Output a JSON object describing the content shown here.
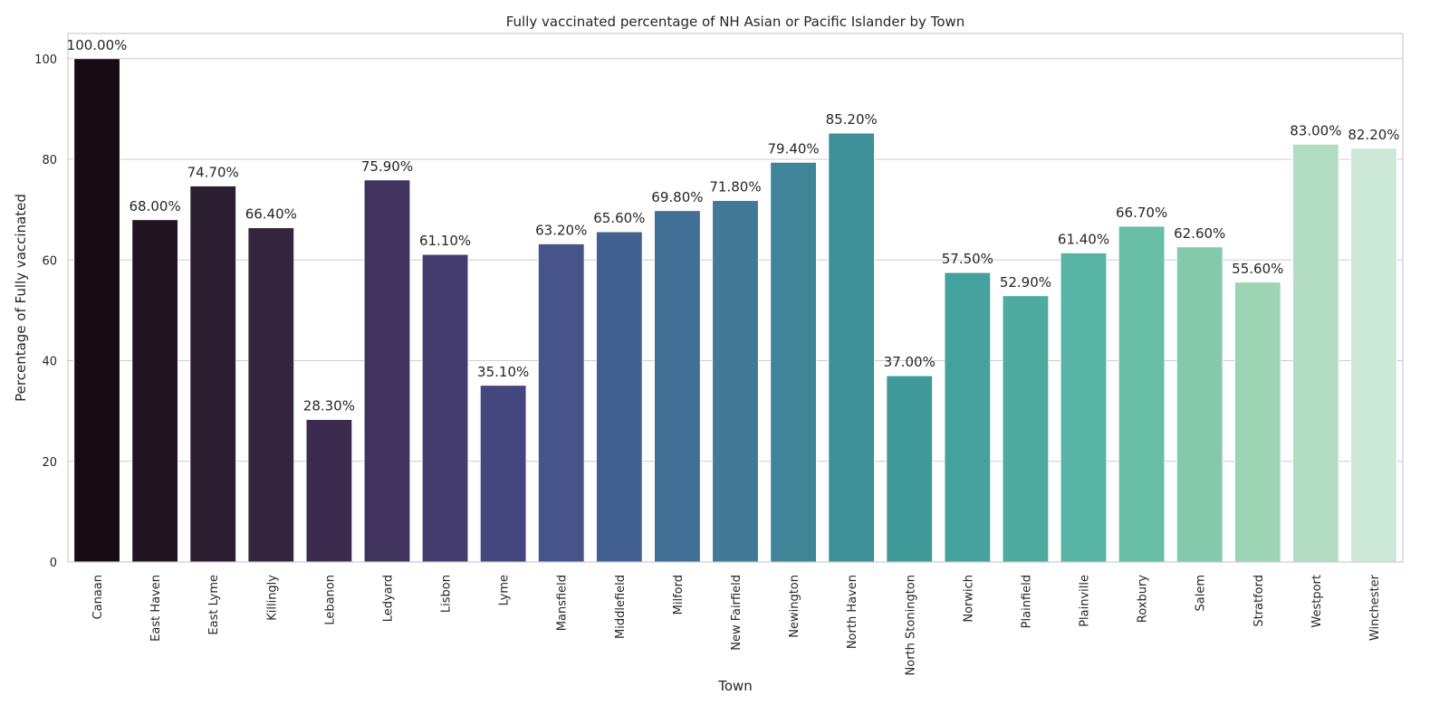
{
  "chart_data": {
    "type": "bar",
    "title": "Fully vaccinated percentage of NH Asian or Pacific Islander by Town",
    "xlabel": "Town",
    "ylabel": "Percentage of Fully vaccinated",
    "ylim": [
      0,
      105
    ],
    "yticks": [
      0,
      20,
      40,
      60,
      80,
      100
    ],
    "grid": "horizontal",
    "categories": [
      "Canaan",
      "East Haven",
      "East Lyme",
      "Killingly",
      "Lebanon",
      "Ledyard",
      "Lisbon",
      "Lyme",
      "Mansfield",
      "Middlefield",
      "Milford",
      "New Fairfield",
      "Newington",
      "North Haven",
      "North Stonington",
      "Norwich",
      "Plainfield",
      "Plainville",
      "Roxbury",
      "Salem",
      "Stratford",
      "Westport",
      "Winchester"
    ],
    "values": [
      100.0,
      68.0,
      74.7,
      66.4,
      28.3,
      75.9,
      61.1,
      35.1,
      63.2,
      65.6,
      69.8,
      71.8,
      79.4,
      85.2,
      37.0,
      57.5,
      52.9,
      61.4,
      66.7,
      62.6,
      55.6,
      83.0,
      82.2
    ],
    "value_labels": [
      "100.00%",
      "68.00%",
      "74.70%",
      "66.40%",
      "28.30%",
      "75.90%",
      "61.10%",
      "35.10%",
      "63.20%",
      "65.60%",
      "69.80%",
      "71.80%",
      "79.40%",
      "85.20%",
      "37.00%",
      "57.50%",
      "52.90%",
      "61.40%",
      "66.70%",
      "62.60%",
      "55.60%",
      "83.00%",
      "82.20%"
    ],
    "colors": [
      "#170c14",
      "#211420",
      "#2b1e30",
      "#34253f",
      "#3b2c4f",
      "#40345f",
      "#443c6f",
      "#46467f",
      "#46548a",
      "#436190",
      "#416e94",
      "#417996",
      "#408497",
      "#3f8f98",
      "#409999",
      "#45a19b",
      "#4eab9f",
      "#58b4a2",
      "#69bfa6",
      "#84c9ab",
      "#9dd4b4",
      "#b3ddc3",
      "#cbe9d6"
    ]
  }
}
